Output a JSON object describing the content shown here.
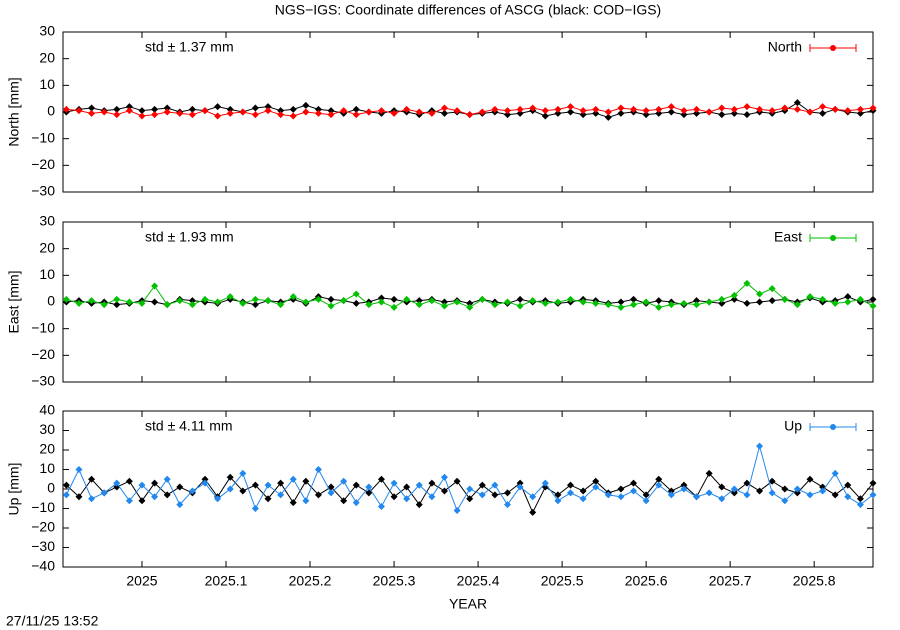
{
  "title": "NGS−IGS: Coordinate differences of ASCG (black: COD−IGS)",
  "timestamp": "27/11/25 13:52",
  "chart_data": [
    {
      "type": "line",
      "ylabel": "North [mm]",
      "annotation": "std ± 1.37 mm",
      "legend": "top right",
      "xlim": [
        2024.906,
        2025.87
      ],
      "xticks": [
        2025,
        2025.1,
        2025.2,
        2025.3,
        2025.4,
        2025.5,
        2025.6,
        2025.7,
        2025.8
      ],
      "ylim": [
        -30,
        30
      ],
      "yticks": [
        {
          "value": -30,
          "label": "−30"
        },
        {
          "value": -20,
          "label": "−20"
        },
        {
          "value": -10,
          "label": "−10"
        },
        0,
        10,
        20,
        30
      ],
      "x": [
        2024.91,
        2024.925,
        2024.94,
        2024.955,
        2024.97,
        2024.985,
        2025.0,
        2025.015,
        2025.03,
        2025.045,
        2025.06,
        2025.075,
        2025.09,
        2025.105,
        2025.12,
        2025.135,
        2025.15,
        2025.165,
        2025.18,
        2025.195,
        2025.21,
        2025.225,
        2025.24,
        2025.255,
        2025.27,
        2025.285,
        2025.3,
        2025.315,
        2025.33,
        2025.345,
        2025.36,
        2025.375,
        2025.39,
        2025.405,
        2025.42,
        2025.435,
        2025.45,
        2025.465,
        2025.48,
        2025.495,
        2025.51,
        2025.525,
        2025.54,
        2025.555,
        2025.57,
        2025.585,
        2025.6,
        2025.615,
        2025.63,
        2025.645,
        2025.66,
        2025.675,
        2025.69,
        2025.705,
        2025.72,
        2025.735,
        2025.75,
        2025.765,
        2025.78,
        2025.795,
        2025.81,
        2025.825,
        2025.84,
        2025.855,
        2025.87
      ],
      "series": [
        {
          "name": "North",
          "color": "#ff0000",
          "values": [
            1,
            0.5,
            -0.5,
            0,
            -1,
            0.5,
            -1.5,
            -1,
            0,
            -0.5,
            -1,
            0.5,
            -1.5,
            -0.5,
            0,
            -1,
            0.5,
            -1,
            -1.5,
            0,
            -0.5,
            -1,
            0.5,
            -1,
            0,
            0.5,
            -0.5,
            1,
            0,
            -0.5,
            1.5,
            0.5,
            -1,
            0,
            1,
            0.5,
            1,
            1.5,
            0.5,
            1,
            2,
            0.5,
            1,
            0,
            1.5,
            1,
            0.5,
            1,
            2,
            0.5,
            1,
            0,
            1.5,
            1,
            2,
            1,
            0.5,
            1.5,
            1,
            0,
            2,
            1,
            0.5,
            1,
            1.5
          ]
        },
        {
          "color": "#000000",
          "values": [
            0,
            1,
            1.5,
            0.5,
            1,
            2,
            0.5,
            1,
            1.5,
            0,
            1,
            0.5,
            2,
            1,
            0,
            1.5,
            2,
            0.5,
            1,
            2.5,
            1,
            0.5,
            -0.5,
            1,
            0,
            -0.5,
            0.5,
            0,
            -1,
            0.5,
            -0.5,
            0,
            -1,
            -0.5,
            0,
            -1,
            -0.5,
            0.5,
            -1.5,
            -0.5,
            0,
            -1,
            -0.5,
            -2,
            -0.5,
            0,
            -1,
            -0.5,
            0,
            -1,
            -0.5,
            0,
            -1,
            -0.5,
            -1,
            0,
            -0.5,
            0.5,
            3.5,
            0,
            -0.5,
            1,
            0,
            -0.5,
            0.5
          ]
        }
      ]
    },
    {
      "type": "line",
      "ylabel": "East [mm]",
      "annotation": "std ± 1.93 mm",
      "legend": "top right",
      "xlim": [
        2024.906,
        2025.87
      ],
      "xticks": [
        2025,
        2025.1,
        2025.2,
        2025.3,
        2025.4,
        2025.5,
        2025.6,
        2025.7,
        2025.8
      ],
      "ylim": [
        -30,
        30
      ],
      "yticks": [
        {
          "value": -30,
          "label": "−30"
        },
        {
          "value": -20,
          "label": "−20"
        },
        {
          "value": -10,
          "label": "−10"
        },
        0,
        10,
        20,
        30
      ],
      "x": [
        2024.91,
        2024.925,
        2024.94,
        2024.955,
        2024.97,
        2024.985,
        2025.0,
        2025.015,
        2025.03,
        2025.045,
        2025.06,
        2025.075,
        2025.09,
        2025.105,
        2025.12,
        2025.135,
        2025.15,
        2025.165,
        2025.18,
        2025.195,
        2025.21,
        2025.225,
        2025.24,
        2025.255,
        2025.27,
        2025.285,
        2025.3,
        2025.315,
        2025.33,
        2025.345,
        2025.36,
        2025.375,
        2025.39,
        2025.405,
        2025.42,
        2025.435,
        2025.45,
        2025.465,
        2025.48,
        2025.495,
        2025.51,
        2025.525,
        2025.54,
        2025.555,
        2025.57,
        2025.585,
        2025.6,
        2025.615,
        2025.63,
        2025.645,
        2025.66,
        2025.675,
        2025.69,
        2025.705,
        2025.72,
        2025.735,
        2025.75,
        2025.765,
        2025.78,
        2025.795,
        2025.81,
        2025.825,
        2025.84,
        2025.855,
        2025.87
      ],
      "series": [
        {
          "name": "East",
          "color": "#00c000",
          "values": [
            1,
            -0.5,
            0.5,
            -1,
            1,
            0,
            -0.5,
            6,
            -1,
            0.5,
            -1,
            1,
            0,
            2,
            -0.5,
            1,
            0.5,
            -1,
            2,
            0,
            1,
            -1.5,
            0.5,
            3,
            -1,
            0,
            -2,
            1,
            -1,
            0.5,
            -1.5,
            0,
            -2,
            1,
            -1,
            0,
            -1.5,
            0.5,
            -0.5,
            0,
            1,
            0,
            -0.5,
            -1,
            -2,
            -1,
            0,
            -2,
            -1,
            -0.5,
            -1,
            0,
            1,
            2.5,
            7,
            3,
            5,
            1,
            -1,
            2,
            1,
            -0.5,
            0,
            1,
            -1.5
          ]
        },
        {
          "color": "#000000",
          "values": [
            0,
            0.5,
            -0.5,
            0,
            -1,
            -0.5,
            0.5,
            0,
            -1,
            1,
            0.5,
            0,
            -0.5,
            1,
            0,
            -1,
            0.5,
            0,
            1,
            -0.5,
            2,
            1,
            0.5,
            -0.5,
            0,
            1.5,
            1,
            0,
            0.5,
            1,
            0,
            0.5,
            -0.5,
            1,
            0,
            -0.5,
            1,
            0,
            0.5,
            -0.5,
            0,
            1,
            0.5,
            -0.5,
            0,
            1,
            -0.5,
            0.5,
            0,
            -1,
            0.5,
            0,
            -0.5,
            1,
            -0.5,
            0,
            0.5,
            1,
            0,
            1.5,
            0,
            0.5,
            2,
            0,
            1
          ]
        }
      ]
    },
    {
      "type": "line",
      "ylabel": "Up [mm]",
      "xlabel": "YEAR",
      "annotation": "std ± 4.11 mm",
      "legend": "top right",
      "xlim": [
        2024.906,
        2025.87
      ],
      "xticks": [
        2025,
        2025.1,
        2025.2,
        2025.3,
        2025.4,
        2025.5,
        2025.6,
        2025.7,
        2025.8
      ],
      "ylim": [
        -40,
        40
      ],
      "yticks": [
        {
          "value": -40,
          "label": "−40"
        },
        {
          "value": -30,
          "label": "−30"
        },
        {
          "value": -20,
          "label": "−20"
        },
        {
          "value": -10,
          "label": "−10"
        },
        0,
        10,
        20,
        30,
        40
      ],
      "x": [
        2024.91,
        2024.925,
        2024.94,
        2024.955,
        2024.97,
        2024.985,
        2025.0,
        2025.015,
        2025.03,
        2025.045,
        2025.06,
        2025.075,
        2025.09,
        2025.105,
        2025.12,
        2025.135,
        2025.15,
        2025.165,
        2025.18,
        2025.195,
        2025.21,
        2025.225,
        2025.24,
        2025.255,
        2025.27,
        2025.285,
        2025.3,
        2025.315,
        2025.33,
        2025.345,
        2025.36,
        2025.375,
        2025.39,
        2025.405,
        2025.42,
        2025.435,
        2025.45,
        2025.465,
        2025.48,
        2025.495,
        2025.51,
        2025.525,
        2025.54,
        2025.555,
        2025.57,
        2025.585,
        2025.6,
        2025.615,
        2025.63,
        2025.645,
        2025.66,
        2025.675,
        2025.69,
        2025.705,
        2025.72,
        2025.735,
        2025.75,
        2025.765,
        2025.78,
        2025.795,
        2025.81,
        2025.825,
        2025.84,
        2025.855,
        2025.87
      ],
      "series": [
        {
          "name": "Up",
          "color": "#2288ee",
          "values": [
            -3,
            10,
            -5,
            -2,
            3,
            -6,
            2,
            -4,
            5,
            -8,
            -1,
            3,
            -5,
            0,
            8,
            -10,
            2,
            -3,
            5,
            -6,
            10,
            -2,
            4,
            -7,
            1,
            -9,
            3,
            -5,
            2,
            -4,
            6,
            -11,
            0,
            -3,
            2,
            -8,
            1,
            -4,
            3,
            -6,
            -2,
            -5,
            1,
            -3,
            -4,
            -1,
            -6,
            2,
            -3,
            0,
            -4,
            -2,
            -5,
            0,
            -3,
            22,
            -2,
            -6,
            0,
            -3,
            -1,
            8,
            -4,
            -8,
            -3
          ]
        },
        {
          "color": "#000000",
          "values": [
            2,
            -4,
            5,
            -2,
            1,
            4,
            -6,
            3,
            -3,
            1,
            -2,
            5,
            -4,
            6,
            -1,
            2,
            -5,
            3,
            -7,
            4,
            -3,
            1,
            -6,
            2,
            -2,
            5,
            -4,
            1,
            -8,
            3,
            -1,
            4,
            -5,
            2,
            -3,
            -2,
            3,
            -12,
            1,
            -3,
            2,
            -1,
            4,
            -2,
            0,
            3,
            -3,
            5,
            -1,
            2,
            -4,
            8,
            1,
            -2,
            3,
            -1,
            4,
            0,
            -2,
            5,
            1,
            -3,
            2,
            -5,
            3
          ]
        }
      ]
    }
  ]
}
